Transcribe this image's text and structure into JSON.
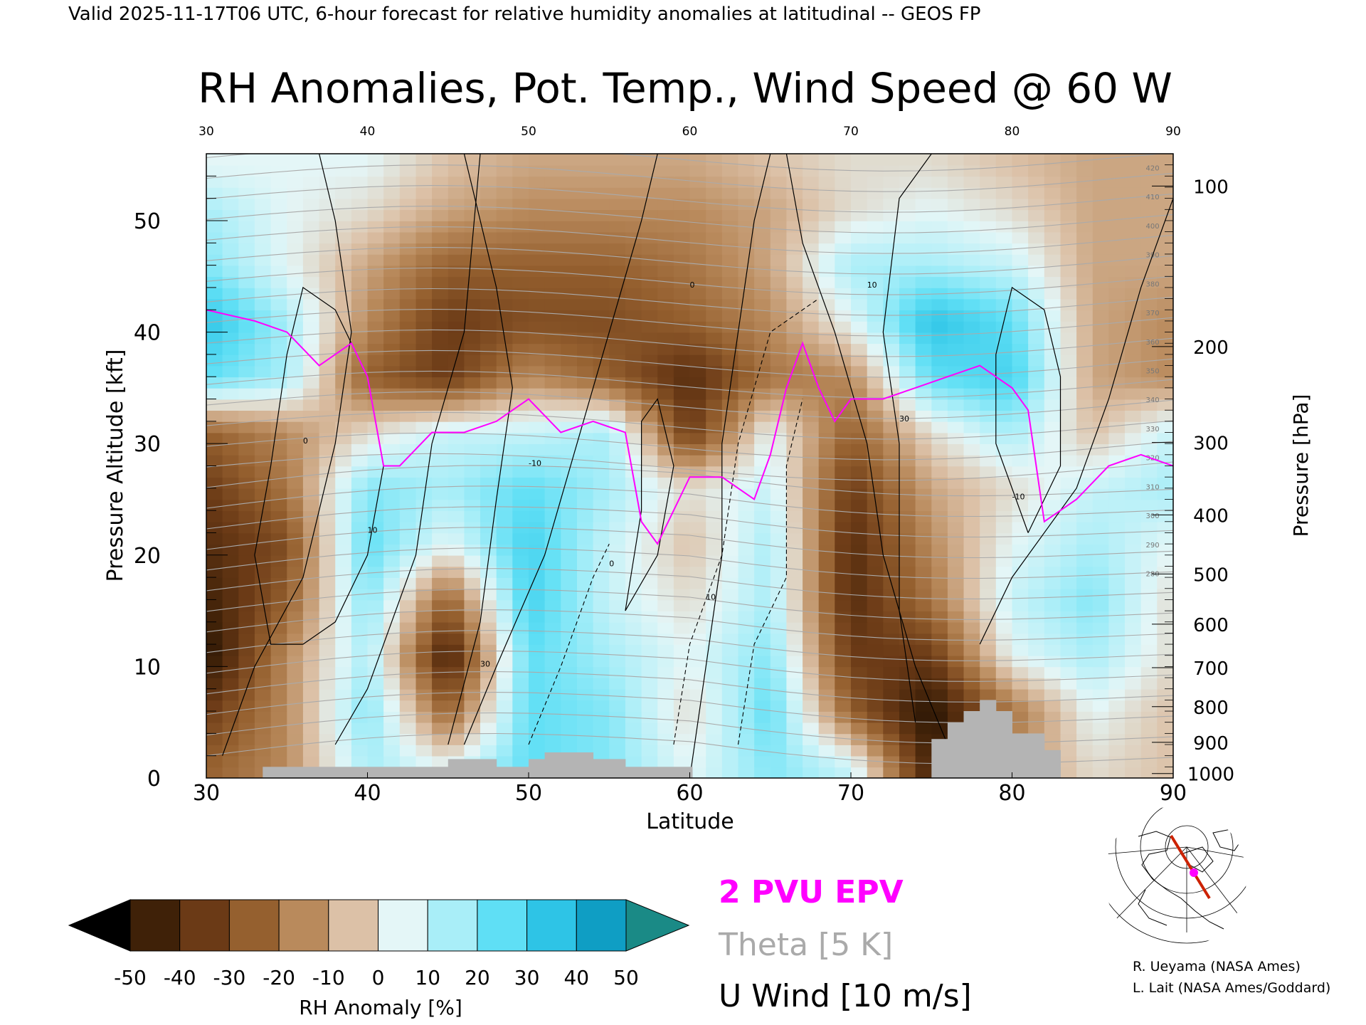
{
  "header": {
    "valid_line": "Valid 2025-11-17T06 UTC, 6-hour forecast for relative humidity anomalies at latitudinal -- GEOS FP",
    "title": "RH Anomalies, Pot. Temp., Wind Speed @ 60 W"
  },
  "colors": {
    "epv": "#ff00ff",
    "theta": "#aaaaaa",
    "wind": "#000000",
    "terrain": "#b4b4b4",
    "brown_deep": "#4a2a10",
    "cyan_mid": "#3fd6f0"
  },
  "chart_data": {
    "type": "heatmap",
    "title": "RH Anomalies, Pot. Temp., Wind Speed @ 60 W",
    "xlabel": "Latitude",
    "ylabel": "Pressure Altitude [kft]",
    "y2label": "Pressure [hPa]",
    "xlim": [
      30,
      90
    ],
    "ylim": [
      0,
      56
    ],
    "x_ticks": [
      "30",
      "40",
      "50",
      "60",
      "70",
      "80",
      "90"
    ],
    "x_tick_values": [
      30,
      40,
      50,
      60,
      70,
      80,
      90
    ],
    "y_ticks": [
      "0",
      "10",
      "20",
      "30",
      "40",
      "50"
    ],
    "y_tick_values": [
      0,
      10,
      20,
      30,
      40,
      50
    ],
    "pressure_ticks": [
      {
        "label": "100",
        "kft": 53.1
      },
      {
        "label": "200",
        "kft": 38.7
      },
      {
        "label": "300",
        "kft": 30.1
      },
      {
        "label": "400",
        "kft": 23.6
      },
      {
        "label": "500",
        "kft": 18.3
      },
      {
        "label": "600",
        "kft": 13.8
      },
      {
        "label": "700",
        "kft": 9.9
      },
      {
        "label": "800",
        "kft": 6.4
      },
      {
        "label": "900",
        "kft": 3.2
      },
      {
        "label": "1000",
        "kft": 0.4
      }
    ],
    "colorbar": {
      "label": "RH Anomaly [%]",
      "tick_labels": [
        "-50",
        "-40",
        "-30",
        "-20",
        "-10",
        "0",
        "10",
        "20",
        "30",
        "40",
        "50"
      ],
      "levels": [
        -50,
        -40,
        -30,
        -20,
        -10,
        0,
        10,
        20,
        30,
        40,
        50
      ],
      "colors": [
        "#000000",
        "#3f2108",
        "#6b3a16",
        "#95602f",
        "#b98a5c",
        "#dcc1a7",
        "#e4f6f7",
        "#a9eef8",
        "#5fdff5",
        "#2ec4e6",
        "#0f9ec4",
        "#1a8a86"
      ]
    },
    "legend": [
      "2 PVU EPV",
      "Theta [5 K]",
      "U Wind [10 m/s]"
    ],
    "theta_labels": [
      "420",
      "410",
      "400",
      "390",
      "380",
      "370",
      "360",
      "350",
      "340",
      "330",
      "320",
      "310",
      "300",
      "290",
      "280"
    ],
    "wind_labels": [
      "0",
      "10",
      "30",
      "-10"
    ],
    "rh_field": {
      "x": [
        30,
        35,
        40,
        45,
        50,
        55,
        60,
        65,
        70,
        75,
        80,
        85,
        90
      ],
      "y": [
        1,
        6,
        11,
        16,
        21,
        26,
        31,
        36,
        41,
        46,
        51,
        55
      ],
      "values": [
        [
          -20,
          -10,
          20,
          10,
          30,
          25,
          10,
          25,
          15,
          -40,
          -10,
          5,
          0
        ],
        [
          -30,
          -10,
          25,
          -20,
          30,
          25,
          5,
          30,
          -20,
          -45,
          -15,
          10,
          0
        ],
        [
          -45,
          -10,
          20,
          -40,
          30,
          20,
          10,
          25,
          -30,
          -30,
          10,
          20,
          5
        ],
        [
          -40,
          -20,
          25,
          -20,
          35,
          15,
          5,
          20,
          -35,
          -15,
          15,
          25,
          5
        ],
        [
          -35,
          -25,
          30,
          10,
          35,
          15,
          0,
          20,
          -35,
          -10,
          10,
          20,
          10
        ],
        [
          -30,
          -15,
          25,
          20,
          30,
          20,
          5,
          15,
          -30,
          -5,
          5,
          15,
          20
        ],
        [
          -20,
          -10,
          5,
          15,
          15,
          20,
          -30,
          10,
          -20,
          5,
          20,
          0,
          15
        ],
        [
          30,
          20,
          -20,
          -30,
          -10,
          -20,
          -35,
          -15,
          -10,
          30,
          35,
          -5,
          -10
        ],
        [
          40,
          20,
          -10,
          -30,
          -25,
          -25,
          -20,
          -10,
          10,
          40,
          30,
          -5,
          -10
        ],
        [
          25,
          10,
          -5,
          -20,
          -20,
          -20,
          -15,
          -5,
          20,
          20,
          15,
          -5,
          -5
        ],
        [
          20,
          10,
          5,
          -5,
          -10,
          -10,
          -10,
          -5,
          5,
          10,
          5,
          -5,
          -5
        ],
        [
          10,
          10,
          10,
          0,
          -5,
          -5,
          -5,
          0,
          5,
          5,
          0,
          -5,
          -5
        ]
      ]
    },
    "epv_2pvu": {
      "x": [
        30,
        33,
        35,
        37,
        39,
        40,
        41,
        42,
        44,
        46,
        48,
        50,
        52,
        54,
        56,
        57,
        58,
        60,
        62,
        64,
        65,
        66,
        67,
        68,
        69,
        70,
        72,
        74,
        76,
        78,
        80,
        81,
        82,
        84,
        86,
        88,
        90
      ],
      "y": [
        42,
        41,
        40,
        37,
        39,
        36,
        28,
        28,
        31,
        31,
        32,
        34,
        31,
        32,
        31,
        23,
        21,
        27,
        27,
        25,
        29,
        35,
        39,
        35,
        32,
        34,
        34,
        35,
        36,
        37,
        35,
        33,
        23,
        25,
        28,
        29,
        28
      ]
    },
    "terrain": {
      "x": [
        33.5,
        37,
        40,
        42,
        44,
        45,
        46,
        48,
        49,
        50,
        51,
        52,
        54,
        56,
        58,
        60,
        75,
        76,
        77,
        78,
        79,
        80,
        82
      ],
      "height_kft": [
        1,
        1,
        1,
        1,
        1,
        1.7,
        1.7,
        1,
        1,
        1.7,
        2.3,
        2.3,
        1.7,
        1,
        1,
        1,
        3.5,
        5,
        6,
        7,
        6,
        4,
        2.5
      ]
    },
    "credits": [
      "R. Ueyama (NASA Ames)",
      "L. Lait (NASA Ames/Goddard)"
    ]
  }
}
